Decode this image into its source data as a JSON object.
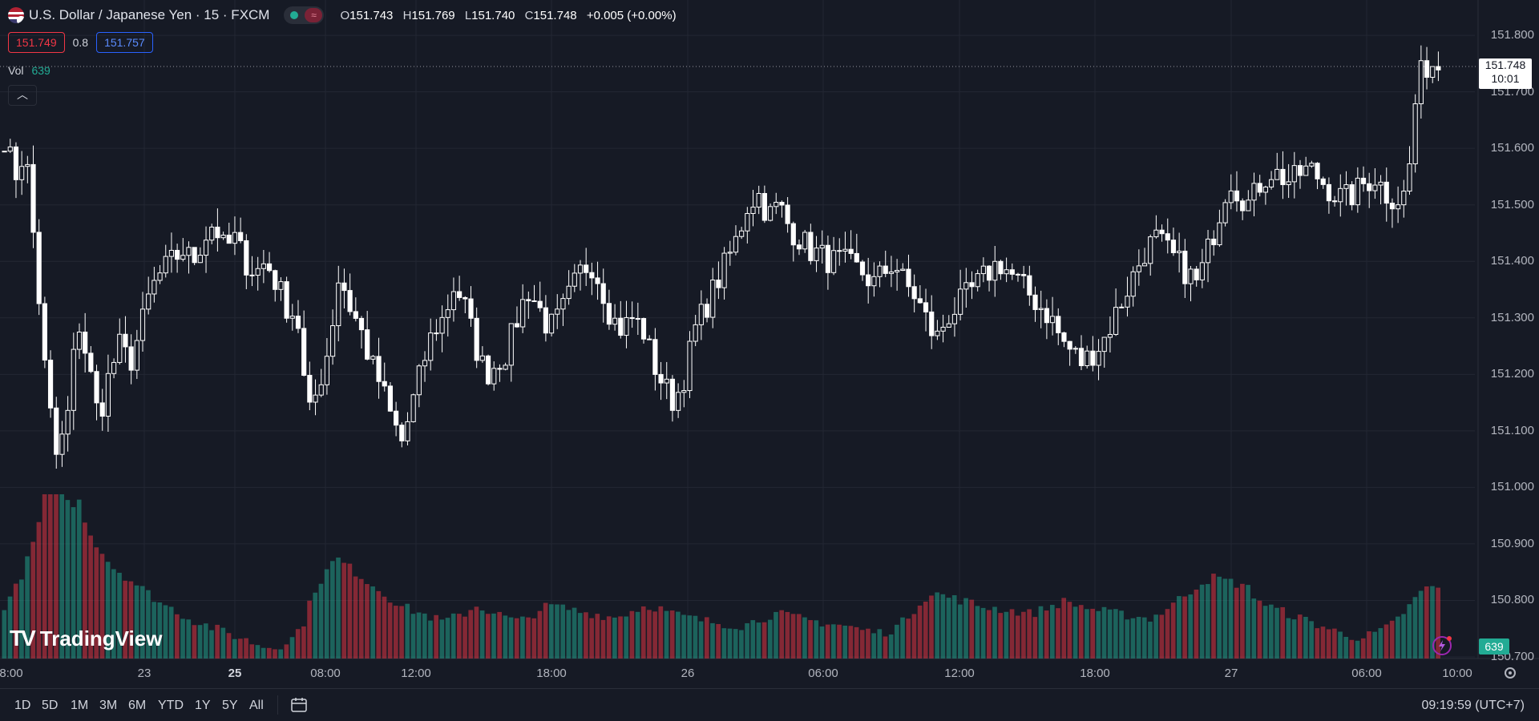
{
  "header": {
    "symbol_title": "U.S. Dollar / Japanese Yen · 15 · FXCM",
    "toggle_icon": "wave-icon",
    "ohlc": {
      "open_label": "O",
      "open": "151.743",
      "high_label": "H",
      "high": "151.769",
      "low_label": "L",
      "low": "151.740",
      "close_label": "C",
      "close": "151.748",
      "change": "+0.005 (+0.00%)"
    }
  },
  "quote": {
    "sell": "151.749",
    "spread": "0.8",
    "buy": "151.757"
  },
  "volume_legend": {
    "label": "Vol",
    "value": "639"
  },
  "price_axis": {
    "labels": [
      "151.800",
      "151.700",
      "151.600",
      "151.500",
      "151.400",
      "151.300",
      "151.200",
      "151.100",
      "151.000",
      "150.900",
      "150.800",
      "150.700"
    ],
    "last_price": "151.748",
    "countdown": "10:01",
    "volume_badge": "639"
  },
  "time_axis": {
    "labels": [
      {
        "text": "8:00",
        "bold": false
      },
      {
        "text": "23",
        "bold": false
      },
      {
        "text": "25",
        "bold": true
      },
      {
        "text": "08:00",
        "bold": false
      },
      {
        "text": "12:00",
        "bold": false
      },
      {
        "text": "18:00",
        "bold": false
      },
      {
        "text": "26",
        "bold": false
      },
      {
        "text": "06:00",
        "bold": false
      },
      {
        "text": "12:00",
        "bold": false
      },
      {
        "text": "18:00",
        "bold": false
      },
      {
        "text": "27",
        "bold": false
      },
      {
        "text": "06:00",
        "bold": false
      },
      {
        "text": "10:00",
        "bold": false
      }
    ]
  },
  "watermark": {
    "text": "TradingView"
  },
  "bottom_bar": {
    "timeframes": [
      "1D",
      "5D",
      "1M",
      "3M",
      "6M",
      "YTD",
      "1Y",
      "5Y",
      "All"
    ],
    "clock": "09:19:59 (UTC+7)"
  },
  "colors": {
    "up_volume": "#22ab94",
    "down_volume": "#f23645",
    "candle": "#ffffff",
    "background": "#161a25",
    "grid": "#232733"
  },
  "chart_data": {
    "type": "candlestick",
    "symbol": "USDJPY",
    "interval": "15",
    "ylim": [
      150.7,
      151.82
    ],
    "grid": true,
    "approx_close_path": [
      151.62,
      151.55,
      151.6,
      151.4,
      151.18,
      151.05,
      151.12,
      151.3,
      151.22,
      151.12,
      151.2,
      151.25,
      151.22,
      151.28,
      151.35,
      151.38,
      151.4,
      151.42,
      151.4,
      151.44,
      151.47,
      151.42,
      151.44,
      151.4,
      151.38,
      151.4,
      151.36,
      151.32,
      151.3,
      151.12,
      151.18,
      151.25,
      151.38,
      151.32,
      151.28,
      151.22,
      151.18,
      151.12,
      151.08,
      151.15,
      151.22,
      151.28,
      151.3,
      151.36,
      151.32,
      151.25,
      151.2,
      151.22,
      151.24,
      151.3,
      151.35,
      151.32,
      151.28,
      151.3,
      151.34,
      151.38,
      151.4,
      151.36,
      151.3,
      151.28,
      151.3,
      151.28,
      151.22,
      151.18,
      151.15,
      151.2,
      151.28,
      151.32,
      151.36,
      151.4,
      151.44,
      151.5,
      151.52,
      151.48,
      151.5,
      151.46,
      151.44,
      151.42,
      151.41,
      151.4,
      151.4,
      151.39,
      151.38,
      151.36,
      151.38,
      151.4,
      151.36,
      151.34,
      151.3,
      151.26,
      151.3,
      151.32,
      151.34,
      151.36,
      151.38,
      151.4,
      151.38,
      151.36,
      151.34,
      151.32,
      151.3,
      151.26,
      151.24,
      151.22,
      151.24,
      151.26,
      151.3,
      151.34,
      151.38,
      151.42,
      151.44,
      151.42,
      151.4,
      151.38,
      151.36,
      151.42,
      151.48,
      151.55,
      151.52,
      151.5,
      151.54,
      151.56,
      151.55,
      151.54,
      151.56,
      151.56,
      151.54,
      151.52,
      151.51,
      151.52,
      151.54,
      151.55,
      151.52,
      151.51,
      151.52,
      151.72,
      151.75,
      151.748
    ],
    "approx_volume_path": [
      60,
      80,
      110,
      150,
      210,
      290,
      180,
      190,
      150,
      130,
      110,
      100,
      90,
      80,
      70,
      60,
      55,
      45,
      40,
      35,
      30,
      25,
      20,
      15,
      10,
      8,
      12,
      20,
      40,
      80,
      100,
      120,
      110,
      100,
      90,
      80,
      70,
      60,
      55,
      50,
      45,
      40,
      45,
      50,
      60,
      55,
      50,
      45,
      40,
      45,
      55,
      60,
      58,
      55,
      52,
      50,
      48,
      45,
      50,
      55,
      60,
      58,
      52,
      48,
      45,
      42,
      40,
      38,
      36,
      35,
      40,
      45,
      50,
      48,
      45,
      42,
      40,
      38,
      36,
      34,
      30,
      28,
      26,
      30,
      40,
      55,
      70,
      75,
      72,
      68,
      65,
      60,
      58,
      56,
      54,
      52,
      50,
      55,
      60,
      65,
      62,
      58,
      55,
      52,
      50,
      48,
      46,
      44,
      50,
      60,
      70,
      80,
      90,
      95,
      92,
      88,
      85,
      70,
      60,
      55,
      50,
      45,
      40,
      35,
      30,
      25,
      22,
      20,
      25,
      30,
      40,
      55,
      70,
      85,
      80
    ]
  }
}
